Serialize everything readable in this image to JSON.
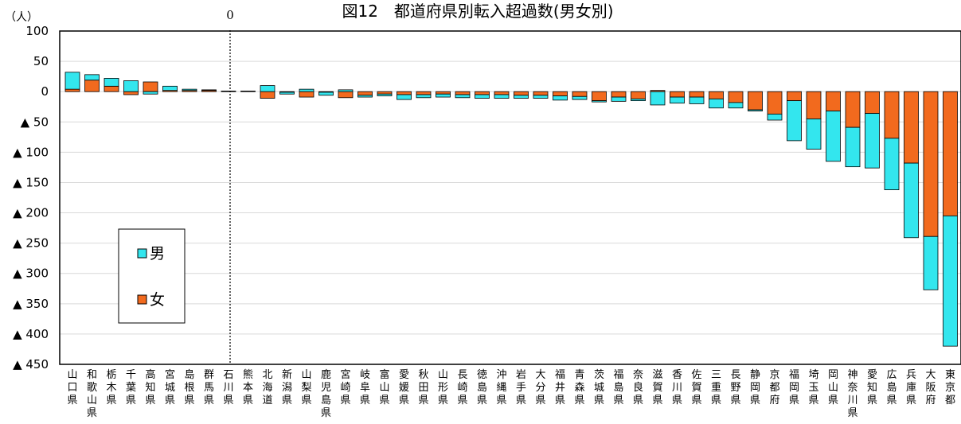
{
  "chart_data": {
    "type": "bar",
    "stacked": true,
    "title": "図12　都道府県別転入超過数(男女別)",
    "ylabel": "（人）",
    "zero_label": "0",
    "ylim": [
      -450,
      100
    ],
    "yticks": [
      {
        "value": 100,
        "label": "100"
      },
      {
        "value": 50,
        "label": "50"
      },
      {
        "value": 0,
        "label": "0"
      },
      {
        "value": -50,
        "label": "▲ 50"
      },
      {
        "value": -100,
        "label": "▲ 100"
      },
      {
        "value": -150,
        "label": "▲ 150"
      },
      {
        "value": -200,
        "label": "▲ 200"
      },
      {
        "value": -250,
        "label": "▲ 250"
      },
      {
        "value": -300,
        "label": "▲ 300"
      },
      {
        "value": -350,
        "label": "▲ 350"
      },
      {
        "value": -400,
        "label": "▲ 400"
      },
      {
        "value": -450,
        "label": "▲ 450"
      }
    ],
    "grid": true,
    "legend_position": "left-middle",
    "colors": {
      "male": "#33E6EE",
      "female": "#F26A1E"
    },
    "categories": [
      "山口県",
      "和歌山県",
      "栃木県",
      "千葉県",
      "高知県",
      "宮城県",
      "島根県",
      "群馬県",
      "石川県",
      "熊本県",
      "北海道",
      "新潟県",
      "山梨県",
      "鹿児島県",
      "宮崎県",
      "岐阜県",
      "富山県",
      "愛媛県",
      "秋田県",
      "山形県",
      "長崎県",
      "徳島県",
      "沖縄県",
      "岩手県",
      "大分県",
      "福井県",
      "青森県",
      "茨城県",
      "福島県",
      "奈良県",
      "滋賀県",
      "香川県",
      "佐賀県",
      "三重県",
      "長野県",
      "静岡県",
      "京都府",
      "福岡県",
      "埼玉県",
      "岡山県",
      "神奈川県",
      "愛知県",
      "広島県",
      "兵庫県",
      "大阪府",
      "東京都"
    ],
    "series": [
      {
        "name": "男",
        "key": "male",
        "values": [
          28,
          9,
          13,
          18,
          -4,
          7,
          2,
          1,
          1,
          1,
          10,
          -3,
          4,
          -5,
          3,
          -3,
          -3,
          -8,
          -5,
          -5,
          -5,
          -6,
          -6,
          -5,
          -5,
          -7,
          -5,
          -2,
          -7,
          -3,
          -22,
          -10,
          -11,
          -15,
          -9,
          -2,
          -10,
          -66,
          -50,
          -83,
          -65,
          -90,
          -85,
          -123,
          -88,
          -215
        ]
      },
      {
        "name": "女",
        "key": "female",
        "values": [
          4,
          19,
          9,
          -5,
          16,
          2,
          2,
          2,
          0,
          0,
          -11,
          -1,
          -9,
          -1,
          -10,
          -6,
          -4,
          -5,
          -5,
          -4,
          -5,
          -5,
          -5,
          -6,
          -6,
          -7,
          -8,
          -15,
          -9,
          -12,
          2,
          -9,
          -9,
          -12,
          -18,
          -30,
          -37,
          -15,
          -45,
          -32,
          -59,
          -36,
          -77,
          -118,
          -239,
          -205
        ]
      }
    ]
  }
}
